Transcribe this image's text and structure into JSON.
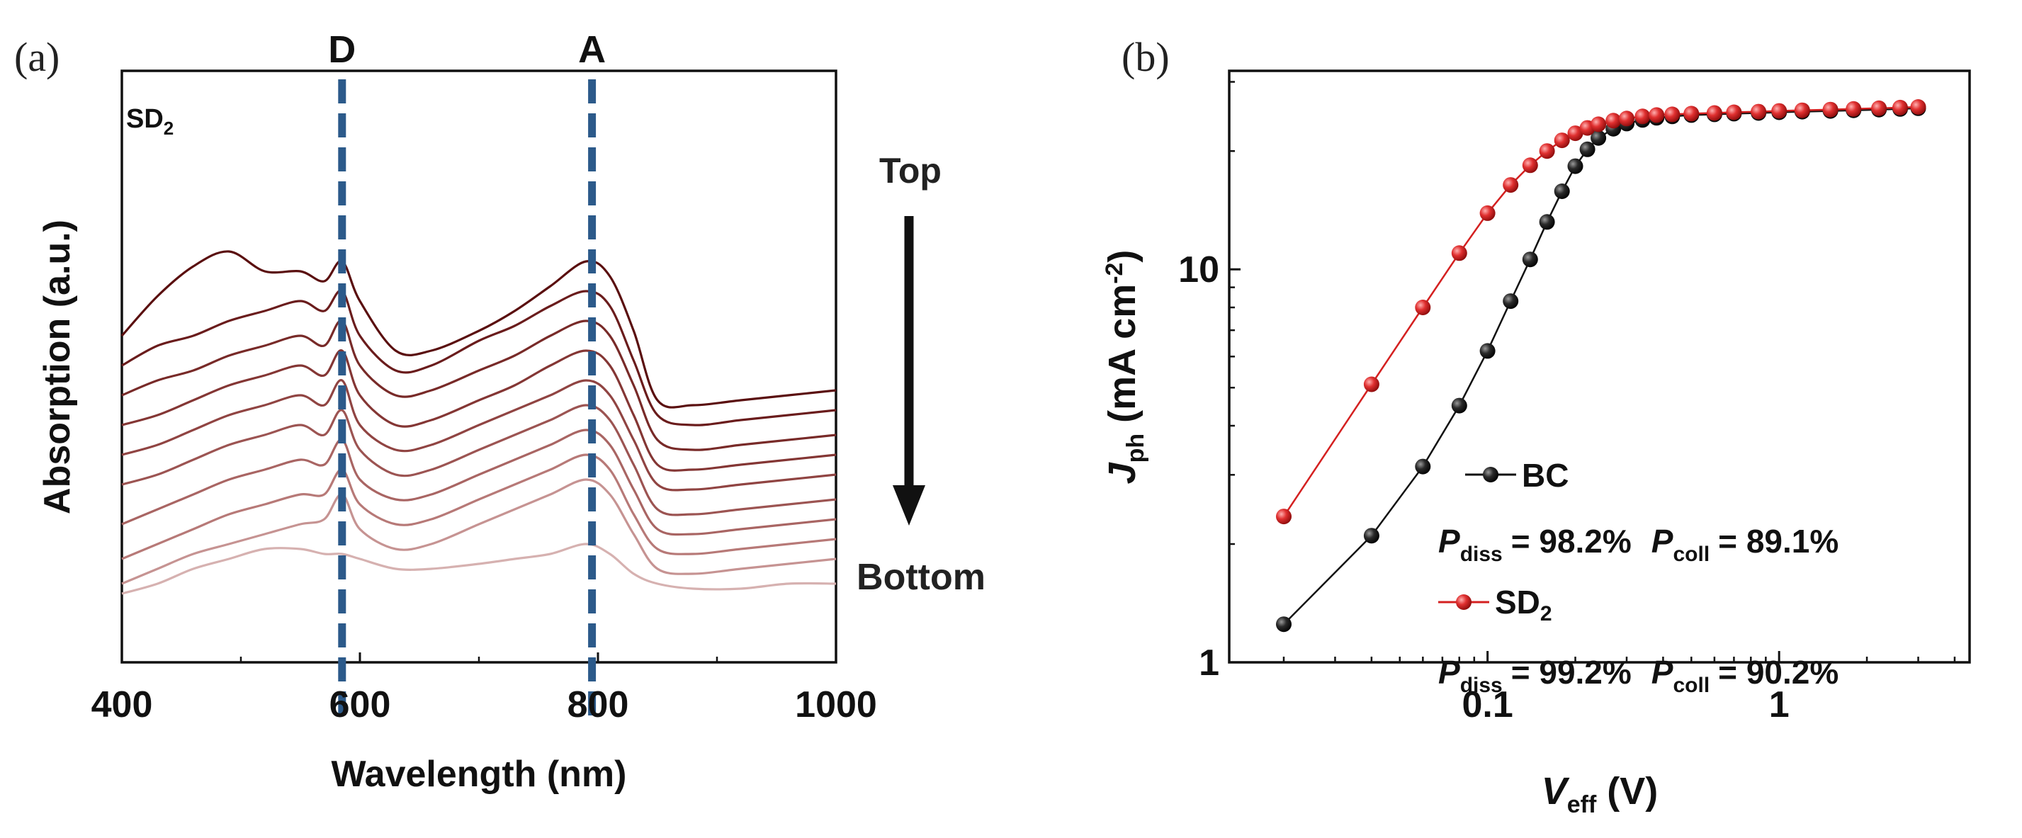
{
  "chart_data": [
    {
      "panel_label": "(a)",
      "type": "line",
      "sample_label": "SD",
      "sample_sub": "2",
      "xlabel": "Wavelength (nm)",
      "ylabel": "Absorption (a.u.)",
      "xlim": [
        400,
        1000
      ],
      "xticks": [
        "400",
        "600",
        "800",
        "1000"
      ],
      "grid": false,
      "markers": [
        {
          "label": "D",
          "x": 585
        },
        {
          "label": "A",
          "x": 795
        }
      ],
      "arrow": {
        "top_label": "Top",
        "bottom_label": "Bottom"
      },
      "curve_colors": [
        "#5a0f0f",
        "#6a1c1c",
        "#782a28",
        "#843634",
        "#904442",
        "#9c5452",
        "#a96563",
        "#b77977",
        "#c69392",
        "#d6b1b0"
      ],
      "x": [
        400,
        430,
        460,
        490,
        520,
        550,
        570,
        585,
        600,
        630,
        660,
        700,
        730,
        760,
        790,
        810,
        830,
        850,
        880,
        920,
        960,
        1000
      ],
      "series": [
        {
          "values": [
            63,
            71,
            77,
            80,
            76,
            76,
            74,
            78,
            70,
            60,
            60,
            64,
            68,
            73,
            78,
            75,
            64,
            50,
            49,
            50,
            51,
            52
          ]
        },
        {
          "values": [
            57,
            61,
            63,
            66,
            68,
            70,
            68,
            72,
            63,
            56,
            57,
            62,
            65,
            69,
            72,
            69,
            58,
            47,
            45,
            46,
            47,
            48
          ]
        },
        {
          "values": [
            51,
            54,
            56,
            59,
            61,
            63,
            61,
            66,
            57,
            51,
            52,
            56,
            59,
            63,
            66,
            63,
            53,
            42,
            40,
            41,
            42,
            43
          ]
        },
        {
          "values": [
            45,
            47,
            50,
            53,
            55,
            57,
            55,
            60,
            51,
            45,
            46,
            50,
            53,
            57,
            60,
            57,
            47,
            37,
            36,
            37,
            38,
            39
          ]
        },
        {
          "values": [
            39,
            41,
            44,
            47,
            49,
            51,
            49,
            54,
            45,
            40,
            41,
            45,
            48,
            51,
            54,
            51,
            42,
            33,
            32,
            33,
            34,
            35
          ]
        },
        {
          "values": [
            33,
            35,
            38,
            41,
            43,
            45,
            43,
            48,
            40,
            35,
            36,
            40,
            43,
            46,
            49,
            46,
            37,
            28,
            27,
            28,
            29,
            30
          ]
        },
        {
          "values": [
            25,
            28,
            31,
            34,
            36,
            38,
            37,
            42,
            34,
            30,
            31,
            35,
            38,
            41,
            44,
            41,
            32,
            24,
            23,
            24,
            25,
            26
          ]
        },
        {
          "values": [
            18,
            21,
            24,
            27,
            29,
            31,
            31,
            36,
            29,
            25,
            26,
            30,
            33,
            36,
            39,
            36,
            27,
            20,
            19,
            20,
            21,
            22
          ]
        },
        {
          "values": [
            13,
            16,
            19,
            21,
            23,
            25,
            26,
            31,
            24,
            20,
            21,
            25,
            28,
            31,
            34,
            31,
            23,
            16,
            15,
            16,
            17,
            18
          ]
        },
        {
          "values": [
            11,
            13,
            16,
            18,
            20,
            20,
            19,
            19,
            18,
            16,
            16,
            17,
            18,
            19,
            21,
            19,
            15,
            13,
            12,
            12,
            13,
            13
          ]
        }
      ]
    },
    {
      "panel_label": "(b)",
      "type": "scatter",
      "xscale": "log",
      "yscale": "log",
      "xlim": [
        0.013,
        4.5
      ],
      "ylim": [
        1,
        32
      ],
      "xticks": [
        {
          "v": 0.1,
          "label": "0.1"
        },
        {
          "v": 1,
          "label": "1"
        }
      ],
      "yticks": [
        {
          "v": 1,
          "label": "1"
        },
        {
          "v": 10,
          "label": "10"
        }
      ],
      "xlabel": {
        "main": "V",
        "sub": "eff",
        "unit": " (V)"
      },
      "ylabel": {
        "main": "J",
        "sub": "ph",
        "unit": " (mA cm",
        "sup": "-2",
        "close": ")"
      },
      "grid": false,
      "series": [
        {
          "name": "BC",
          "name_sub": "",
          "color": "#111111",
          "p_diss": "= 98.2%",
          "p_coll": "= 89.1%",
          "x": [
            0.02,
            0.04,
            0.06,
            0.08,
            0.1,
            0.12,
            0.14,
            0.16,
            0.18,
            0.2,
            0.22,
            0.24,
            0.27,
            0.3,
            0.34,
            0.38,
            0.43,
            0.5,
            0.6,
            0.7,
            0.85,
            1.0,
            1.2,
            1.5,
            1.8,
            2.2,
            2.6,
            3.0
          ],
          "values": [
            1.25,
            2.1,
            3.15,
            4.5,
            6.2,
            8.3,
            10.6,
            13.2,
            15.8,
            18.3,
            20.2,
            21.6,
            22.8,
            23.5,
            24.0,
            24.3,
            24.5,
            24.7,
            24.8,
            24.9,
            25.0,
            25.1,
            25.2,
            25.3,
            25.4,
            25.5,
            25.6,
            25.7
          ]
        },
        {
          "name": "SD",
          "name_sub": "2",
          "color": "#d42020",
          "p_diss": "= 99.2%",
          "p_coll": "= 90.2%",
          "x": [
            0.02,
            0.04,
            0.06,
            0.08,
            0.1,
            0.12,
            0.14,
            0.16,
            0.18,
            0.2,
            0.22,
            0.24,
            0.27,
            0.3,
            0.34,
            0.38,
            0.43,
            0.5,
            0.6,
            0.7,
            0.85,
            1.0,
            1.2,
            1.5,
            1.8,
            2.2,
            2.6,
            3.0
          ],
          "values": [
            2.35,
            5.1,
            8.0,
            11.0,
            13.9,
            16.4,
            18.4,
            20.0,
            21.3,
            22.2,
            22.9,
            23.4,
            23.9,
            24.2,
            24.5,
            24.7,
            24.8,
            24.9,
            25.0,
            25.1,
            25.2,
            25.3,
            25.4,
            25.5,
            25.6,
            25.7,
            25.8,
            25.9
          ]
        }
      ],
      "p_diss_label": {
        "main": "P",
        "sub": "diss"
      },
      "p_coll_label": {
        "main": "P",
        "sub": "coll"
      }
    }
  ]
}
